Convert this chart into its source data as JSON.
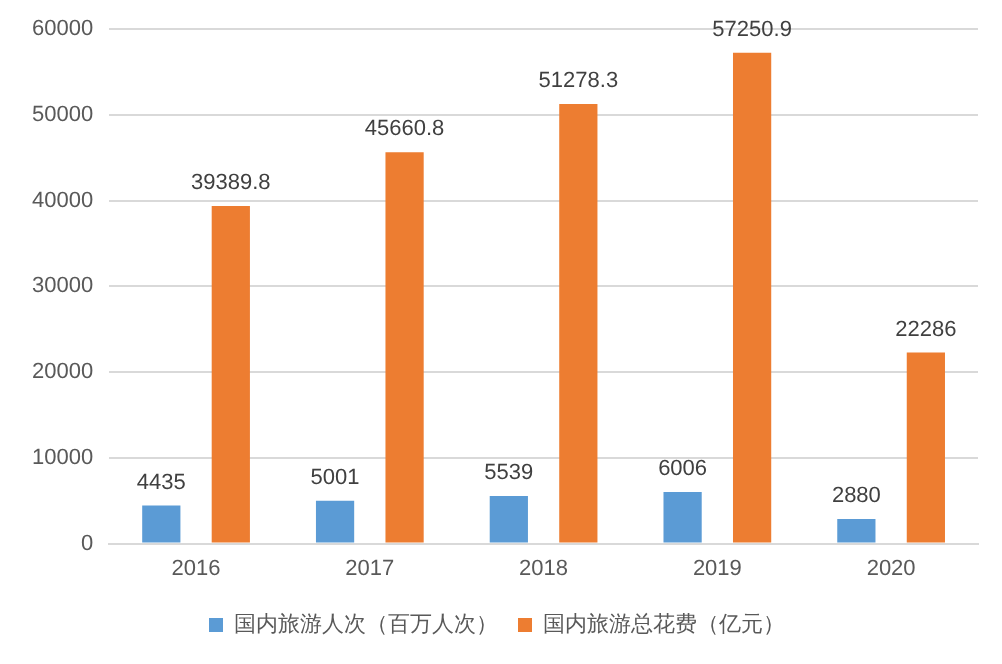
{
  "chart_data": {
    "type": "bar",
    "categories": [
      "2016",
      "2017",
      "2018",
      "2019",
      "2020"
    ],
    "series": [
      {
        "name": "国内旅游人次（百万人次）",
        "color": "#5b9bd5",
        "values": [
          4435,
          5001,
          5539,
          6006,
          2880
        ]
      },
      {
        "name": "国内旅游总花费（亿元）",
        "color": "#ed7d31",
        "values": [
          39389.8,
          45660.8,
          51278.3,
          57250.9,
          22286
        ]
      }
    ],
    "ylim": [
      0,
      60000
    ],
    "yticks": [
      0,
      10000,
      20000,
      30000,
      40000,
      50000,
      60000
    ],
    "grid": "y",
    "legend": "bottom",
    "data_labels": true
  }
}
